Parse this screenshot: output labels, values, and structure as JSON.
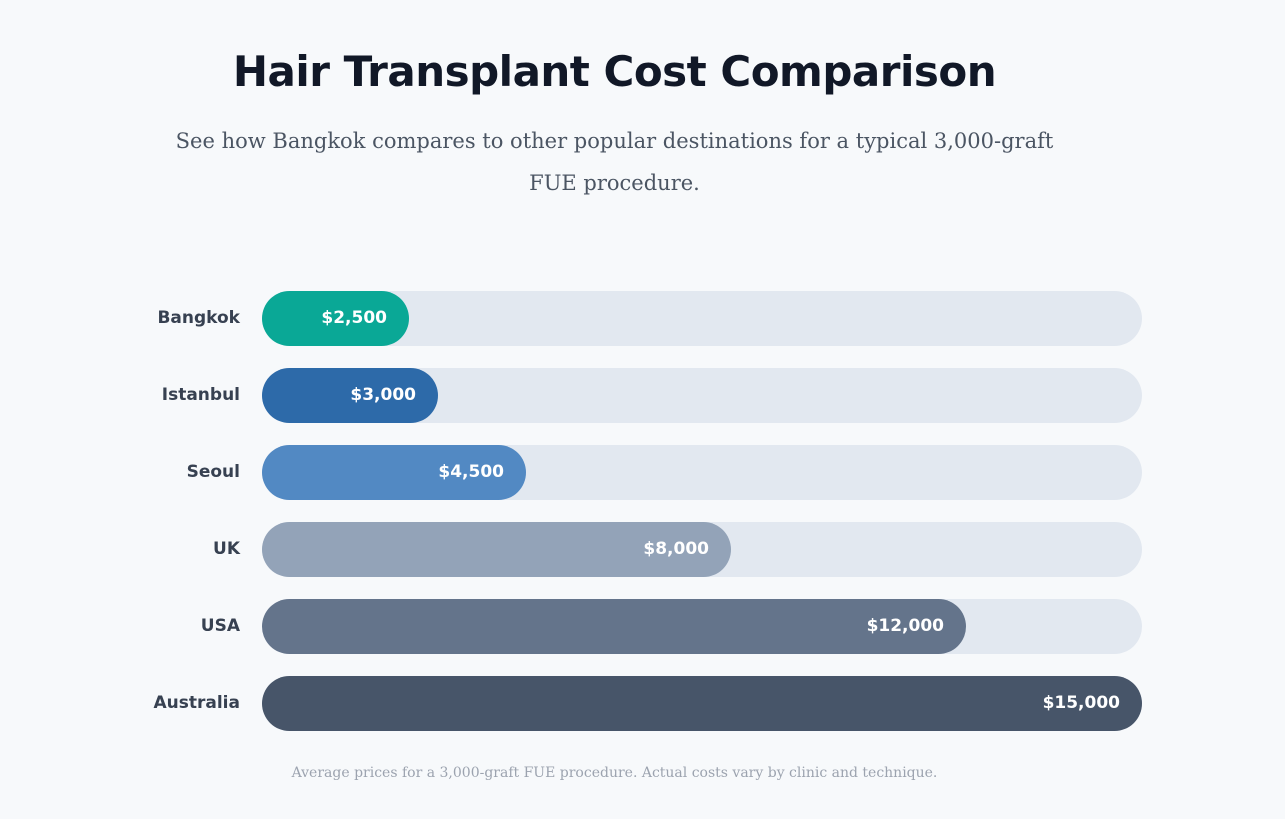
{
  "header": {
    "title": "Hair Transplant Cost Comparison",
    "subtitle": "See how Bangkok compares to other popular destinations for a typical 3,000-graft FUE procedure."
  },
  "footnote": "Average prices for a 3,000-graft FUE procedure. Actual costs vary by clinic and technique.",
  "chart_data": {
    "type": "bar",
    "orientation": "horizontal",
    "title": "Hair Transplant Cost Comparison",
    "categories": [
      "Bangkok",
      "Istanbul",
      "Seoul",
      "UK",
      "USA",
      "Australia"
    ],
    "values": [
      2500,
      3000,
      4500,
      8000,
      12000,
      15000
    ],
    "value_labels": [
      "$2,500",
      "$3,000",
      "$4,500",
      "$8,000",
      "$12,000",
      "$15,000"
    ],
    "xlim": [
      0,
      15000
    ],
    "grid": false,
    "colors": [
      "#0aa896",
      "#2d6aa9",
      "#5289c3",
      "#93a3b8",
      "#64748b",
      "#475569"
    ],
    "track_color": "#e2e8f0"
  }
}
